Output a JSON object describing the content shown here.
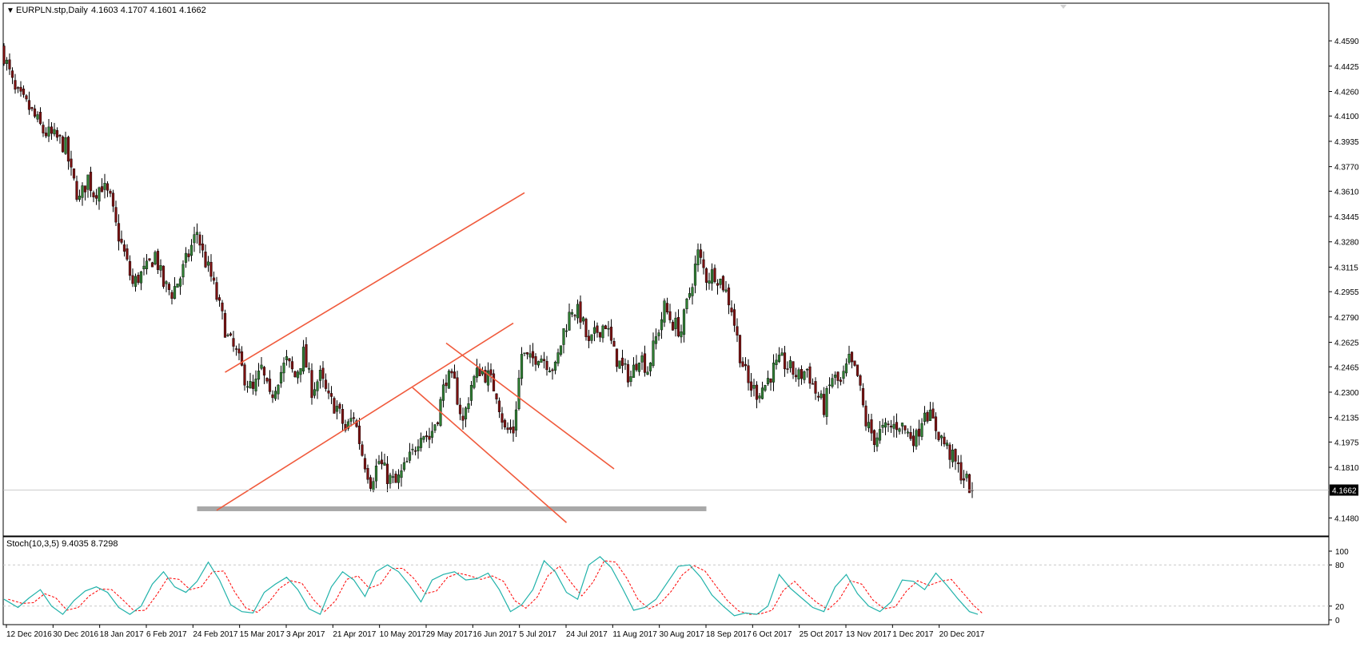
{
  "header": {
    "symbol_label": "EURPLN.stp,Daily",
    "ohlc_label": "4.1603 4.1707 4.1601 4.1662",
    "menu_glyph": "▼"
  },
  "colors": {
    "background": "#ffffff",
    "bull_candle": "#2e7d32",
    "bear_candle": "#7a1010",
    "channel_line": "#f05a3c",
    "support_band": "#a8a8a8",
    "stoch_main": "#20b2aa",
    "stoch_signal": "#ff0000",
    "grid_dotted": "#c8c8c8",
    "frame": "#000000"
  },
  "chart_data": [
    {
      "type": "candlestick",
      "title": "EURPLN.stp,Daily",
      "price_ticks": [
        "4.4590",
        "4.4425",
        "4.4260",
        "4.4100",
        "4.3935",
        "4.3770",
        "4.3610",
        "4.3445",
        "4.3280",
        "4.3115",
        "4.2955",
        "4.2790",
        "4.2625",
        "4.2465",
        "4.2300",
        "4.2135",
        "4.1975",
        "4.1810",
        "4.1480"
      ],
      "ylim": [
        4.142,
        4.47
      ],
      "current_price_label": "4.1662",
      "current_price": 4.1662,
      "x_ticks": [
        "12 Dec 2016",
        "30 Dec 2016",
        "18 Jan 2017",
        "6 Feb 2017",
        "24 Feb 2017",
        "15 Mar 2017",
        "3 Apr 2017",
        "21 Apr 2017",
        "10 May 2017",
        "29 May 2017",
        "16 Jun 2017",
        "5 Jul 2017",
        "24 Jul 2017",
        "11 Aug 2017",
        "30 Aug 2017",
        "18 Sep 2017",
        "6 Oct 2017",
        "25 Oct 2017",
        "13 Nov 2017",
        "1 Dec 2017",
        "20 Dec 2017"
      ],
      "close_path": [
        [
          0,
          4.45
        ],
        [
          4,
          4.425
        ],
        [
          9,
          4.415
        ],
        [
          14,
          4.4
        ],
        [
          19,
          4.395
        ],
        [
          22,
          4.39
        ],
        [
          24,
          4.372
        ],
        [
          27,
          4.355
        ],
        [
          30,
          4.37
        ],
        [
          32,
          4.36
        ],
        [
          35,
          4.365
        ],
        [
          38,
          4.355
        ],
        [
          40,
          4.338
        ],
        [
          43,
          4.32
        ],
        [
          46,
          4.3
        ],
        [
          48,
          4.305
        ],
        [
          51,
          4.31
        ],
        [
          54,
          4.32
        ],
        [
          57,
          4.3
        ],
        [
          60,
          4.295
        ],
        [
          63,
          4.305
        ],
        [
          66,
          4.32
        ],
        [
          69,
          4.335
        ],
        [
          71,
          4.32
        ],
        [
          74,
          4.305
        ],
        [
          77,
          4.285
        ],
        [
          80,
          4.265
        ],
        [
          83,
          4.255
        ],
        [
          86,
          4.24
        ],
        [
          89,
          4.23
        ],
        [
          92,
          4.245
        ],
        [
          95,
          4.225
        ],
        [
          98,
          4.24
        ],
        [
          101,
          4.25
        ],
        [
          104,
          4.24
        ],
        [
          107,
          4.255
        ],
        [
          110,
          4.232
        ],
        [
          113,
          4.24
        ],
        [
          116,
          4.225
        ],
        [
          119,
          4.22
        ],
        [
          122,
          4.205
        ],
        [
          125,
          4.215
        ],
        [
          128,
          4.19
        ],
        [
          131,
          4.172
        ],
        [
          134,
          4.185
        ],
        [
          137,
          4.175
        ],
        [
          140,
          4.17
        ],
        [
          143,
          4.18
        ],
        [
          146,
          4.19
        ],
        [
          149,
          4.205
        ],
        [
          152,
          4.2
        ],
        [
          155,
          4.215
        ],
        [
          158,
          4.24
        ],
        [
          161,
          4.235
        ],
        [
          164,
          4.21
        ],
        [
          167,
          4.235
        ],
        [
          170,
          4.245
        ],
        [
          173,
          4.24
        ],
        [
          176,
          4.23
        ],
        [
          179,
          4.205
        ],
        [
          182,
          4.205
        ],
        [
          185,
          4.255
        ],
        [
          188,
          4.25
        ],
        [
          191,
          4.255
        ],
        [
          194,
          4.25
        ],
        [
          197,
          4.245
        ],
        [
          200,
          4.27
        ],
        [
          203,
          4.285
        ],
        [
          206,
          4.28
        ],
        [
          209,
          4.26
        ],
        [
          212,
          4.27
        ],
        [
          215,
          4.275
        ],
        [
          218,
          4.255
        ],
        [
          221,
          4.245
        ],
        [
          224,
          4.24
        ],
        [
          227,
          4.255
        ],
        [
          230,
          4.245
        ],
        [
          233,
          4.265
        ],
        [
          236,
          4.285
        ],
        [
          239,
          4.275
        ],
        [
          242,
          4.27
        ],
        [
          245,
          4.295
        ],
        [
          248,
          4.32
        ],
        [
          251,
          4.305
        ],
        [
          254,
          4.308
        ],
        [
          257,
          4.3
        ],
        [
          260,
          4.285
        ],
        [
          263,
          4.255
        ],
        [
          266,
          4.235
        ],
        [
          269,
          4.23
        ],
        [
          272,
          4.235
        ],
        [
          275,
          4.245
        ],
        [
          278,
          4.25
        ],
        [
          281,
          4.245
        ],
        [
          284,
          4.24
        ],
        [
          287,
          4.245
        ],
        [
          290,
          4.23
        ],
        [
          293,
          4.22
        ],
        [
          296,
          4.24
        ],
        [
          299,
          4.235
        ],
        [
          302,
          4.25
        ],
        [
          305,
          4.24
        ],
        [
          308,
          4.21
        ],
        [
          311,
          4.2
        ],
        [
          314,
          4.205
        ],
        [
          317,
          4.207
        ],
        [
          320,
          4.21
        ],
        [
          323,
          4.203
        ],
        [
          326,
          4.2
        ],
        [
          329,
          4.22
        ],
        [
          332,
          4.21
        ],
        [
          335,
          4.2
        ],
        [
          338,
          4.19
        ],
        [
          341,
          4.18
        ],
        [
          344,
          4.172
        ],
        [
          346,
          4.166
        ]
      ],
      "x_max": 350,
      "channels": [
        {
          "name": "ascending-upper",
          "points": [
            [
              79,
              4.243
            ],
            [
              186,
              4.36
            ]
          ]
        },
        {
          "name": "ascending-lower",
          "points": [
            [
              76,
              4.153
            ],
            [
              182,
              4.275
            ]
          ]
        },
        {
          "name": "descending-upper",
          "points": [
            [
              158,
              4.262
            ],
            [
              218,
              4.18
            ]
          ]
        },
        {
          "name": "descending-lower",
          "points": [
            [
              146,
              4.233
            ],
            [
              201,
              4.145
            ]
          ]
        }
      ],
      "support_band": {
        "from_x": 69,
        "to_x": 251,
        "price": 4.154
      }
    },
    {
      "type": "line",
      "title": "Stoch(10,3,5)",
      "header_label": "Stoch(10,3,5) 9.4035 8.7298",
      "main_value": 9.4035,
      "signal_value": 8.7298,
      "ylim": [
        0,
        100
      ],
      "y_ticks": [
        "100",
        "80",
        "20",
        "0"
      ],
      "levels": [
        80,
        20
      ],
      "main": [
        [
          0,
          30
        ],
        [
          5,
          18
        ],
        [
          9,
          32
        ],
        [
          13,
          44
        ],
        [
          17,
          20
        ],
        [
          21,
          8
        ],
        [
          25,
          28
        ],
        [
          29,
          42
        ],
        [
          33,
          48
        ],
        [
          37,
          40
        ],
        [
          41,
          18
        ],
        [
          45,
          8
        ],
        [
          49,
          20
        ],
        [
          53,
          52
        ],
        [
          57,
          70
        ],
        [
          61,
          48
        ],
        [
          65,
          40
        ],
        [
          69,
          56
        ],
        [
          73,
          84
        ],
        [
          77,
          58
        ],
        [
          81,
          22
        ],
        [
          85,
          12
        ],
        [
          89,
          10
        ],
        [
          93,
          40
        ],
        [
          97,
          52
        ],
        [
          101,
          62
        ],
        [
          105,
          44
        ],
        [
          109,
          16
        ],
        [
          113,
          8
        ],
        [
          117,
          48
        ],
        [
          121,
          70
        ],
        [
          125,
          58
        ],
        [
          129,
          34
        ],
        [
          133,
          70
        ],
        [
          137,
          80
        ],
        [
          141,
          70
        ],
        [
          145,
          50
        ],
        [
          149,
          26
        ],
        [
          153,
          58
        ],
        [
          157,
          66
        ],
        [
          161,
          70
        ],
        [
          165,
          58
        ],
        [
          169,
          60
        ],
        [
          173,
          68
        ],
        [
          177,
          44
        ],
        [
          181,
          12
        ],
        [
          185,
          22
        ],
        [
          189,
          44
        ],
        [
          193,
          86
        ],
        [
          197,
          70
        ],
        [
          201,
          40
        ],
        [
          205,
          30
        ],
        [
          209,
          80
        ],
        [
          213,
          92
        ],
        [
          217,
          76
        ],
        [
          221,
          46
        ],
        [
          225,
          14
        ],
        [
          229,
          18
        ],
        [
          233,
          30
        ],
        [
          237,
          54
        ],
        [
          241,
          78
        ],
        [
          245,
          80
        ],
        [
          249,
          62
        ],
        [
          253,
          36
        ],
        [
          257,
          20
        ],
        [
          261,
          6
        ],
        [
          265,
          10
        ],
        [
          269,
          8
        ],
        [
          273,
          20
        ],
        [
          277,
          66
        ],
        [
          281,
          46
        ],
        [
          285,
          32
        ],
        [
          289,
          18
        ],
        [
          293,
          12
        ],
        [
          297,
          48
        ],
        [
          301,
          66
        ],
        [
          305,
          38
        ],
        [
          309,
          20
        ],
        [
          313,
          12
        ],
        [
          317,
          26
        ],
        [
          321,
          58
        ],
        [
          325,
          56
        ],
        [
          329,
          44
        ],
        [
          333,
          68
        ],
        [
          337,
          50
        ],
        [
          341,
          30
        ],
        [
          345,
          12
        ],
        [
          348,
          8
        ]
      ]
    }
  ]
}
